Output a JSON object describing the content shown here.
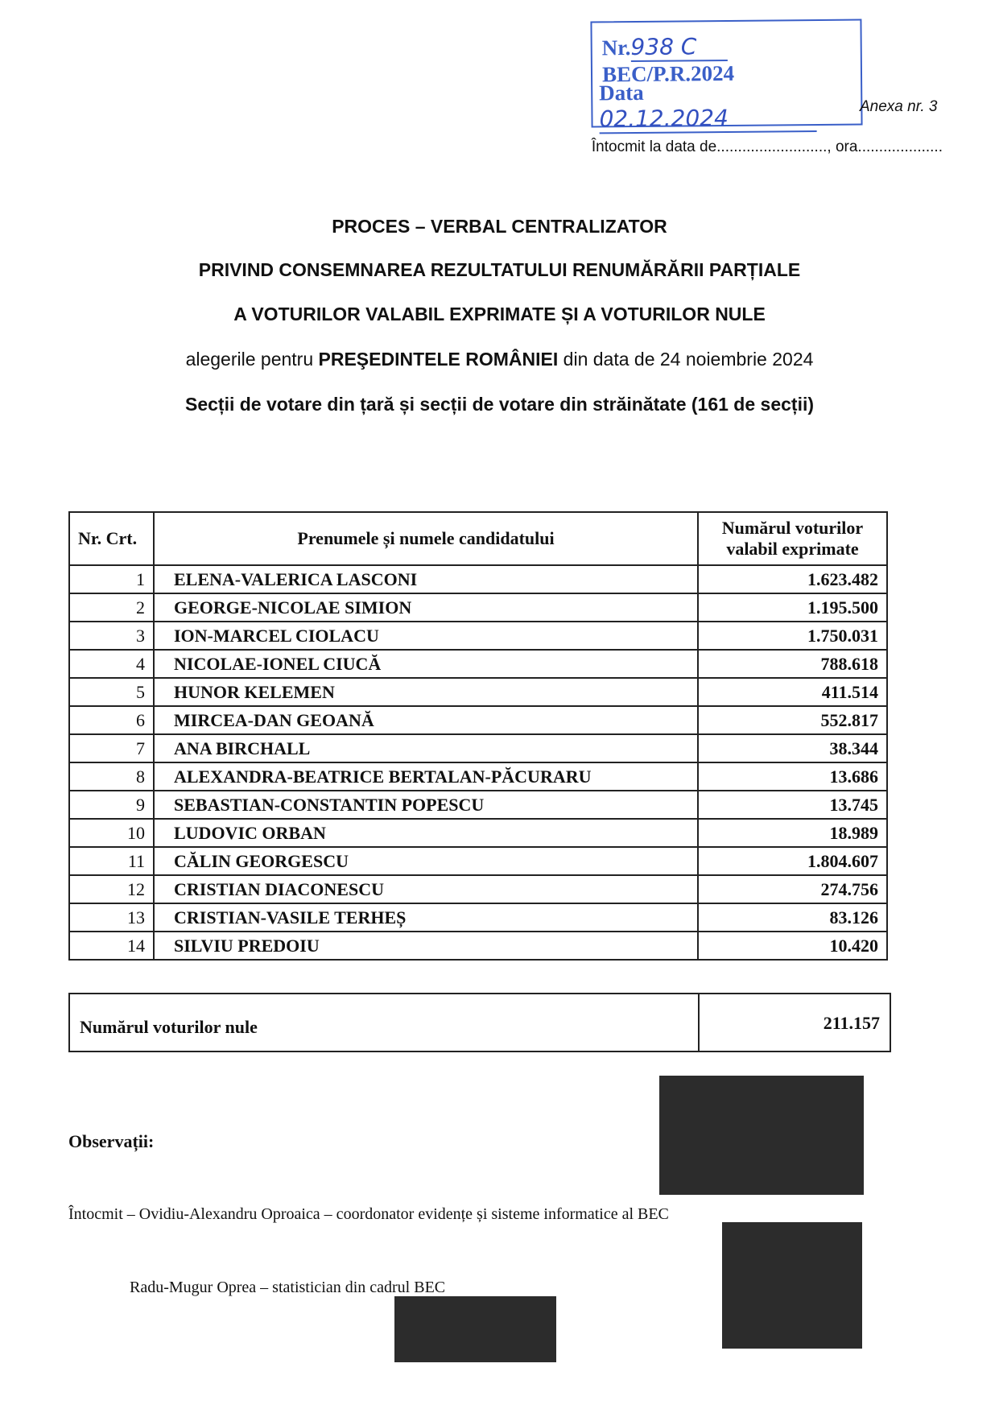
{
  "stamp": {
    "nr_label": "Nr.",
    "nr_value": "938 C",
    "registry": "BEC/P.R.2024",
    "data_label": "Data",
    "data_value": "02.12.2024",
    "stamp_color": "#3a5fc8"
  },
  "anexa": "Anexa nr. 3",
  "intocmit_la": "Întocmit la data de.........................., ora....................",
  "titles": [
    "PROCES – VERBAL CENTRALIZATOR",
    "PRIVIND CONSEMNAREA REZULTATULUI RENUMĂRĂRII PARȚIALE",
    "A VOTURILOR VALABIL EXPRIMATE ȘI A VOTURILOR NULE"
  ],
  "subtitle": {
    "pre": "alegerile pentru ",
    "bold": "PREŞEDINTELE ROMÂNIEI",
    "post": " din data de 24 noiembrie 2024"
  },
  "sections": "Secții de votare din țară și secții de votare din străinătate (161 de secții)",
  "table": {
    "headers": [
      "Nr. Crt.",
      "Prenumele și numele candidatului",
      "Numărul voturilor valabil exprimate"
    ],
    "rows": [
      {
        "nr": "1",
        "name": "ELENA-VALERICA LASCONI",
        "votes": "1.623.482"
      },
      {
        "nr": "2",
        "name": "GEORGE-NICOLAE SIMION",
        "votes": "1.195.500"
      },
      {
        "nr": "3",
        "name": "ION-MARCEL CIOLACU",
        "votes": "1.750.031"
      },
      {
        "nr": "4",
        "name": "NICOLAE-IONEL CIUCĂ",
        "votes": "788.618"
      },
      {
        "nr": "5",
        "name": "HUNOR KELEMEN",
        "votes": "411.514"
      },
      {
        "nr": "6",
        "name": "MIRCEA-DAN GEOANĂ",
        "votes": "552.817"
      },
      {
        "nr": "7",
        "name": "ANA BIRCHALL",
        "votes": "38.344"
      },
      {
        "nr": "8",
        "name": "ALEXANDRA-BEATRICE BERTALAN-PĂCURARU",
        "votes": "13.686"
      },
      {
        "nr": "9",
        "name": "SEBASTIAN-CONSTANTIN POPESCU",
        "votes": "13.745"
      },
      {
        "nr": "10",
        "name": "LUDOVIC ORBAN",
        "votes": "18.989"
      },
      {
        "nr": "11",
        "name": "CĂLIN GEORGESCU",
        "votes": "1.804.607"
      },
      {
        "nr": "12",
        "name": "CRISTIAN DIACONESCU",
        "votes": "274.756"
      },
      {
        "nr": "13",
        "name": "CRISTIAN-VASILE TERHEȘ",
        "votes": "83.126"
      },
      {
        "nr": "14",
        "name": "SILVIU PREDOIU",
        "votes": "10.420"
      }
    ]
  },
  "nule": {
    "label": "Numărul voturilor nule",
    "value": "211.157"
  },
  "observatii": "Observații:",
  "intocmit": "Întocmit – Ovidiu-Alexandru Oproaica – coordonator evidențe și sisteme informatice al BEC",
  "statistician": "Radu-Mugur Oprea – statistician din cadrul BEC"
}
